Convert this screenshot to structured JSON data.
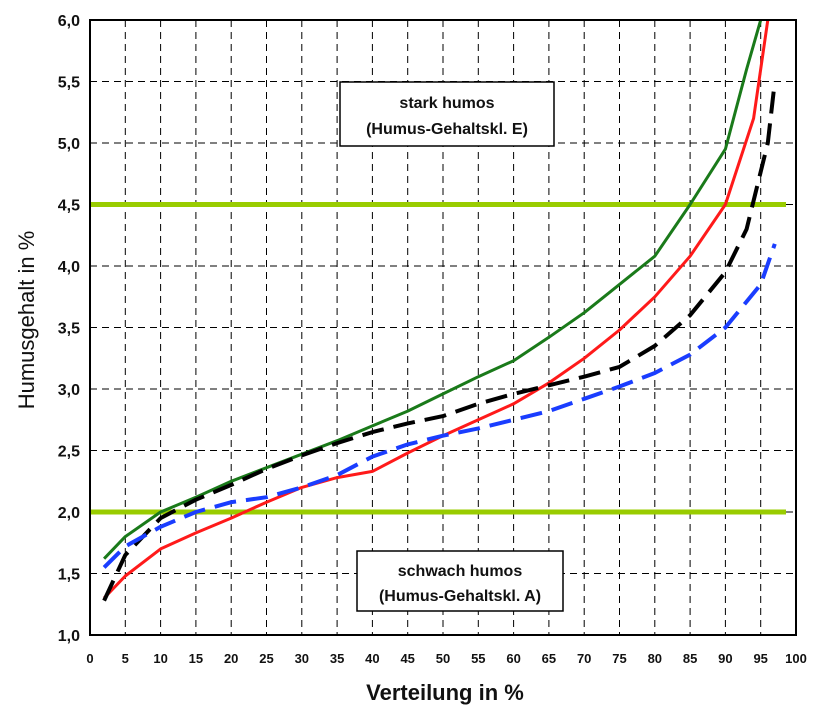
{
  "chart_data": {
    "type": "line",
    "title": "",
    "xlabel": "Verteilung in %",
    "ylabel": "Humusgehalt in %",
    "xlim": [
      0,
      100
    ],
    "ylim": [
      1.0,
      6.0
    ],
    "x_ticks": [
      "0",
      "5",
      "10",
      "15",
      "20",
      "25",
      "30",
      "35",
      "40",
      "45",
      "50",
      "55",
      "60",
      "65",
      "70",
      "75",
      "80",
      "85",
      "90",
      "95",
      "100"
    ],
    "y_ticks": [
      "1,0",
      "1,5",
      "2,0",
      "2,5",
      "3,0",
      "3,5",
      "4,0",
      "4,5",
      "5,0",
      "5,5",
      "6,0"
    ],
    "grid": true,
    "grid_style": "dashed",
    "reference_lines": [
      {
        "y": 2.0,
        "color": "#99cc00"
      },
      {
        "y": 4.5,
        "color": "#99cc00"
      }
    ],
    "annotations": [
      {
        "line1": "stark humos",
        "line2": "(Humus-Gehaltskl.  E)"
      },
      {
        "line1": "schwach humos",
        "line2": "(Humus-Gehaltskl. A)"
      }
    ],
    "series": [
      {
        "color": "#1a7a1a",
        "style": "solid",
        "x": [
          2,
          5,
          10,
          15,
          20,
          25,
          30,
          35,
          40,
          45,
          50,
          55,
          60,
          65,
          70,
          75,
          80,
          85,
          90,
          93,
          95
        ],
        "y": [
          1.62,
          1.8,
          2.0,
          2.12,
          2.25,
          2.36,
          2.47,
          2.58,
          2.7,
          2.82,
          2.96,
          3.1,
          3.23,
          3.42,
          3.62,
          3.85,
          4.08,
          4.5,
          4.95,
          5.6,
          6.0
        ]
      },
      {
        "color": "#ff1a1a",
        "style": "solid",
        "x": [
          2,
          5,
          10,
          15,
          20,
          25,
          30,
          35,
          40,
          45,
          50,
          55,
          60,
          65,
          70,
          75,
          80,
          85,
          90,
          94,
          96
        ],
        "y": [
          1.3,
          1.48,
          1.7,
          1.83,
          1.95,
          2.08,
          2.2,
          2.28,
          2.33,
          2.48,
          2.62,
          2.75,
          2.88,
          3.05,
          3.25,
          3.48,
          3.75,
          4.08,
          4.5,
          5.2,
          6.0
        ]
      },
      {
        "color": "#000000",
        "style": "dashed",
        "x": [
          2,
          5,
          10,
          15,
          20,
          25,
          30,
          35,
          40,
          45,
          50,
          55,
          60,
          65,
          70,
          75,
          80,
          85,
          90,
          93,
          96,
          97
        ],
        "y": [
          1.28,
          1.65,
          1.95,
          2.1,
          2.22,
          2.35,
          2.46,
          2.56,
          2.65,
          2.72,
          2.78,
          2.88,
          2.96,
          3.03,
          3.1,
          3.18,
          3.35,
          3.6,
          3.95,
          4.3,
          5.0,
          5.5
        ]
      },
      {
        "color": "#1a3dff",
        "style": "dashed",
        "x": [
          2,
          5,
          10,
          15,
          20,
          25,
          30,
          35,
          40,
          45,
          50,
          55,
          60,
          65,
          70,
          75,
          80,
          85,
          90,
          95,
          97
        ],
        "y": [
          1.55,
          1.72,
          1.88,
          2.0,
          2.08,
          2.12,
          2.2,
          2.3,
          2.45,
          2.55,
          2.62,
          2.68,
          2.75,
          2.82,
          2.92,
          3.02,
          3.13,
          3.28,
          3.5,
          3.85,
          4.18
        ]
      }
    ]
  }
}
